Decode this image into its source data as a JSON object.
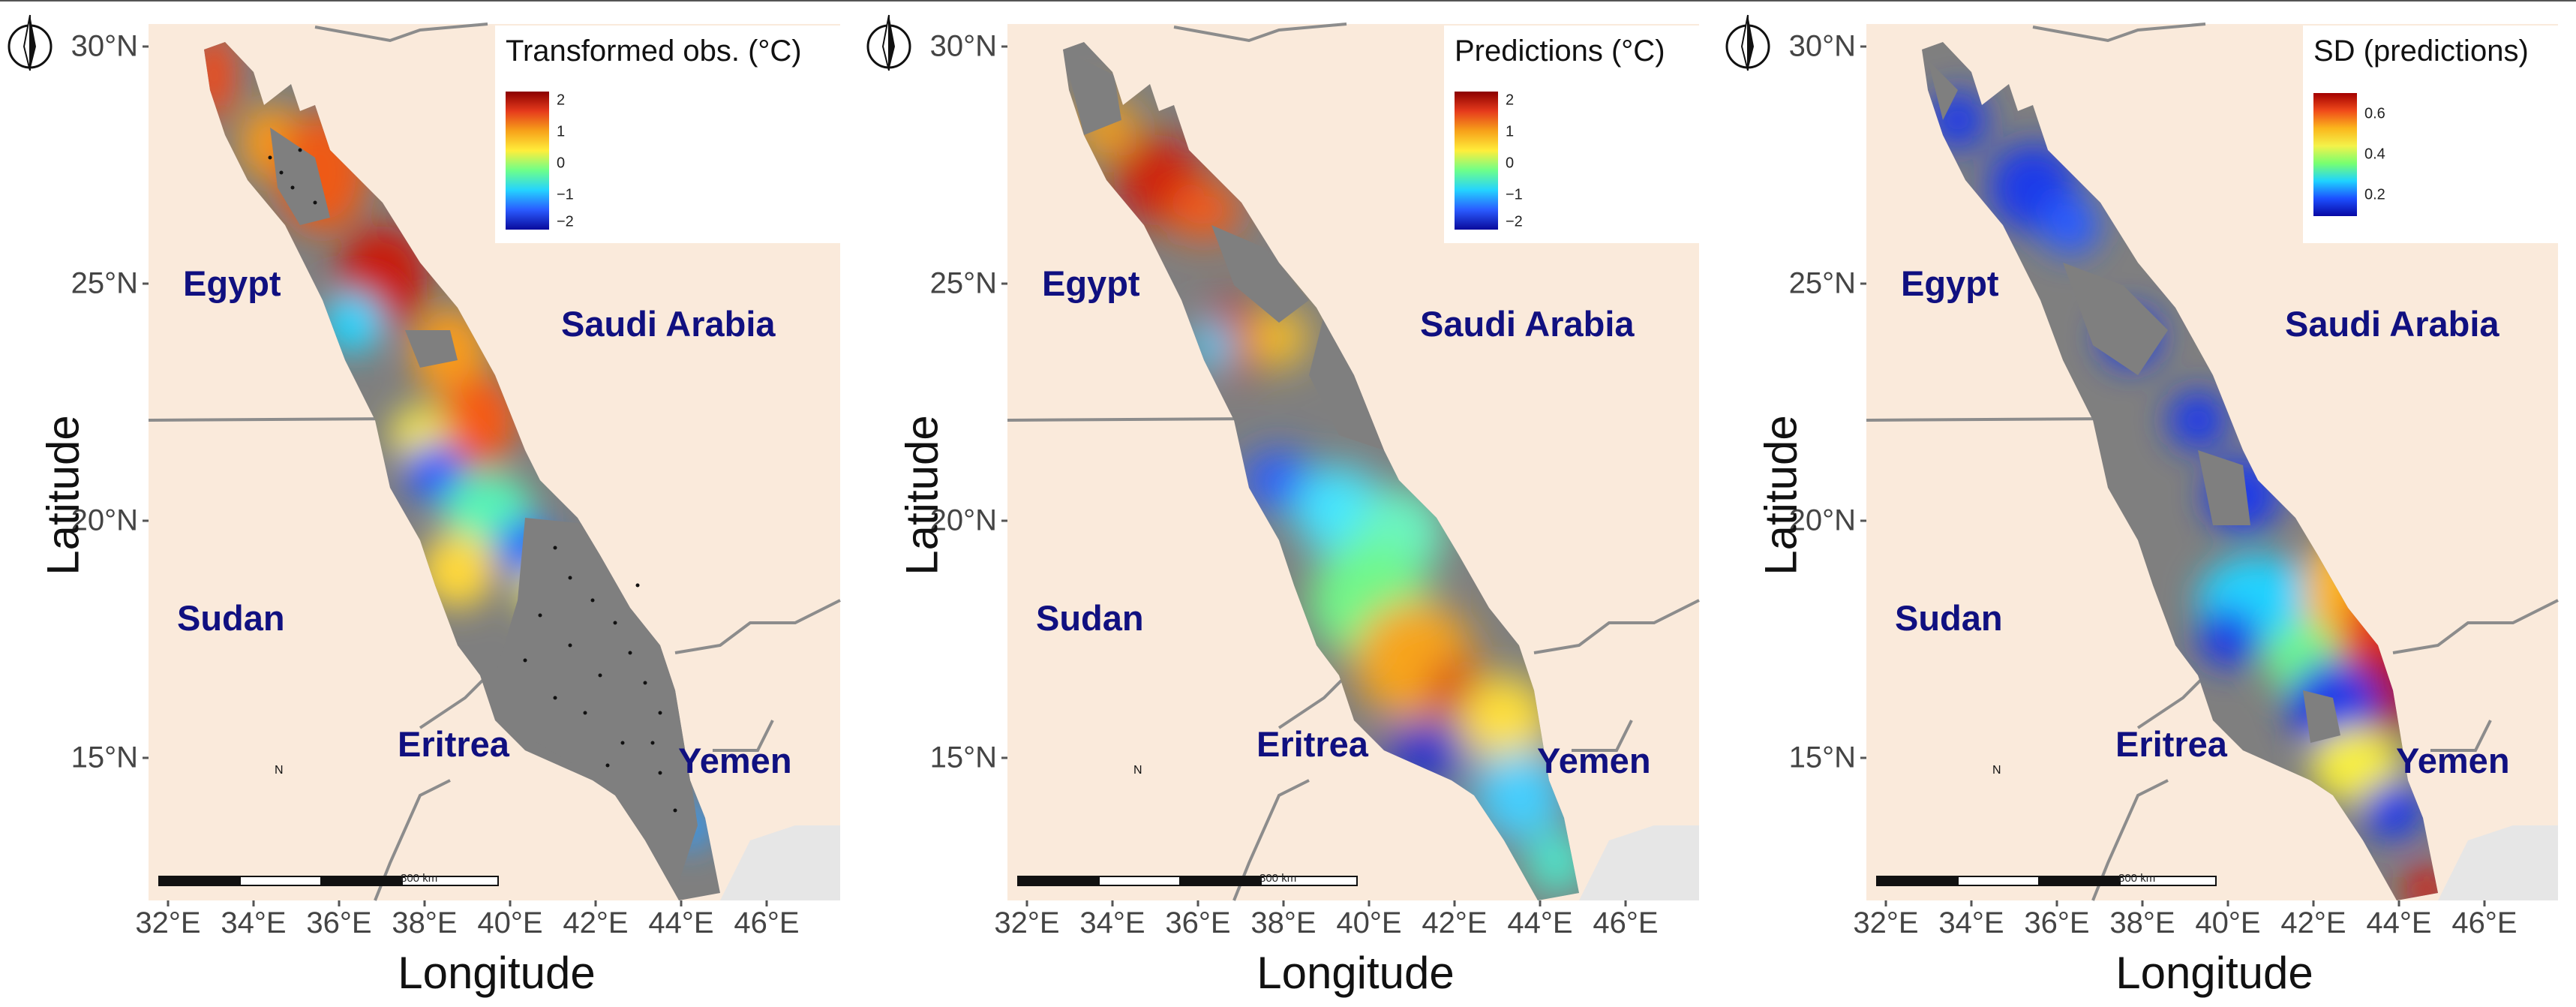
{
  "panels": [
    {
      "legend_title": "Transformed obs. (°C)",
      "legend_ticks": [
        "2",
        "1",
        "0",
        "−1",
        "−2"
      ],
      "legend_colors": [
        "#8b0000",
        "#e63b1c",
        "#f7a21a",
        "#ffee3b",
        "#6dff8a",
        "#24d3ff",
        "#2a5bff",
        "#0a0a9c"
      ]
    },
    {
      "legend_title": "Predictions (°C)",
      "legend_ticks": [
        "2",
        "1",
        "0",
        "−1",
        "−2"
      ],
      "legend_colors": [
        "#8b0000",
        "#e63b1c",
        "#f7a21a",
        "#ffee3b",
        "#6dff8a",
        "#24d3ff",
        "#2a5bff",
        "#0a0a9c"
      ]
    },
    {
      "legend_title": "SD (predictions)",
      "legend_ticks": [
        "0.6",
        "0.4",
        "0.2"
      ],
      "legend_colors": [
        "#a30000",
        "#f04a1a",
        "#fbb61c",
        "#f4f24a",
        "#78ff70",
        "#1fd3ff",
        "#1c4fff",
        "#0808a4"
      ]
    }
  ],
  "axes": {
    "xlabel": "Longitude",
    "ylabel": "Latitude",
    "lat_ticks": [
      "30°N",
      "25°N",
      "20°N",
      "15°N"
    ],
    "lon_ticks": [
      "32°E",
      "34°E",
      "36°E",
      "38°E",
      "40°E",
      "42°E",
      "44°E",
      "46°E"
    ]
  },
  "countries": {
    "egypt": "Egypt",
    "saudi": "Saudi Arabia",
    "sudan": "Sudan",
    "eritrea": "Eritrea",
    "yemen": "Yemen"
  },
  "scale_bar_label": "800 km",
  "north_arrow_label": "N",
  "colors": {
    "land": "#faeadb",
    "sea_masked": "#7f7f7f",
    "border": "#8c8c8c",
    "country_text": "#101080",
    "gulf_of_aden": "#e6e6e6"
  }
}
